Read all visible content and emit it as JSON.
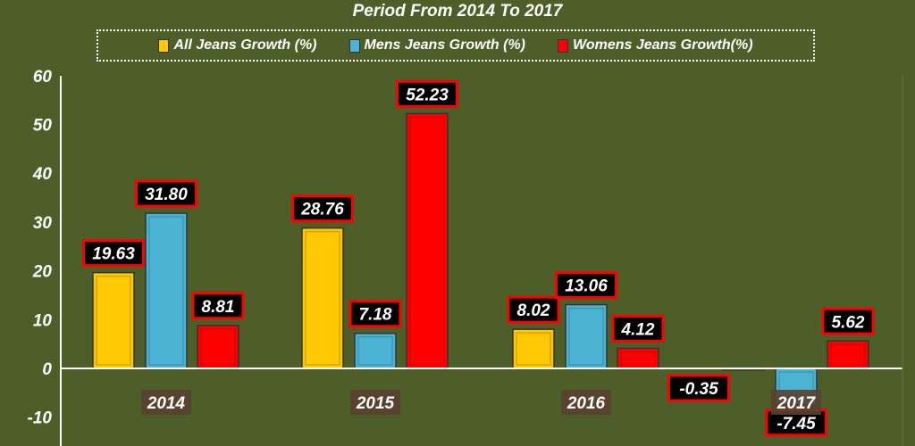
{
  "chart_data": {
    "type": "bar",
    "title": "Period From 2014 To 2017",
    "categories": [
      "2014",
      "2015",
      "2016",
      "2017"
    ],
    "series": [
      {
        "name": "All Jeans Growth (%)",
        "color": "#FFC800",
        "values": [
          19.63,
          28.76,
          8.02,
          -0.35
        ]
      },
      {
        "name": "Mens Jeans Growth (%)",
        "color": "#4BB4D4",
        "values": [
          31.8,
          7.18,
          13.06,
          -7.45
        ]
      },
      {
        "name": "Womens Jeans Growth(%)",
        "color": "#FF0000",
        "values": [
          8.81,
          52.23,
          4.12,
          5.62
        ]
      }
    ],
    "data_labels": [
      [
        "19.63",
        "28.76",
        "8.02",
        "-0.35"
      ],
      [
        "31.80",
        "7.18",
        "13.06",
        "-7.45"
      ],
      [
        "8.81",
        "52.23",
        "4.12",
        "5.62"
      ]
    ],
    "yticks": [
      "60",
      "50",
      "40",
      "30",
      "20",
      "10",
      "0",
      "-10"
    ],
    "ylim": [
      -16,
      60
    ],
    "legend_position": "top",
    "xlabel": "",
    "ylabel": "",
    "grid": false
  }
}
